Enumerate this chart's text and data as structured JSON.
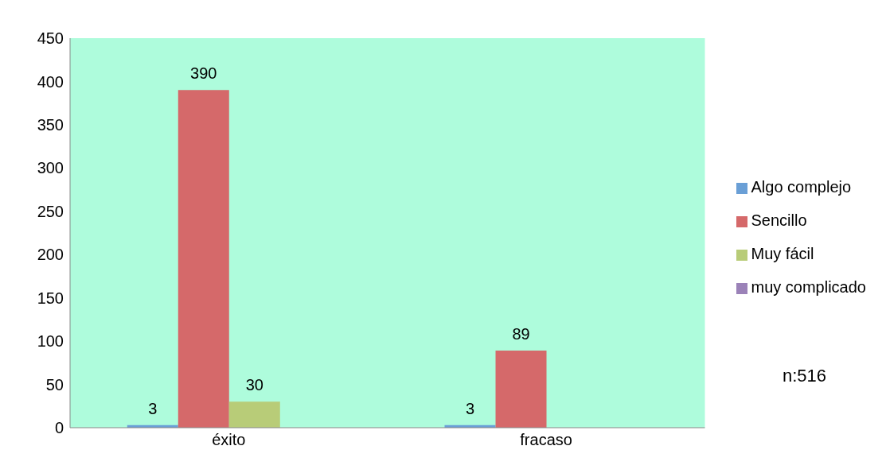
{
  "chart_data": {
    "type": "bar",
    "categories": [
      "éxito",
      "fracaso"
    ],
    "series": [
      {
        "name": "Algo complejo",
        "color": "#6a9fd6",
        "values": [
          3,
          3
        ],
        "value_labels": [
          "3",
          "3"
        ]
      },
      {
        "name": "Sencillo",
        "color": "#d5696a",
        "values": [
          390,
          89
        ],
        "value_labels": [
          "390",
          "89"
        ]
      },
      {
        "name": "Muy fácil",
        "color": "#b8cc78",
        "values": [
          30,
          null
        ],
        "value_labels": [
          "30",
          null
        ]
      },
      {
        "name": "muy complicado",
        "color": "#9b82b8",
        "values": [
          0,
          0
        ],
        "value_labels": [
          null,
          null
        ]
      }
    ],
    "ylim": [
      0,
      450
    ],
    "yticks": [
      0,
      50,
      100,
      150,
      200,
      250,
      300,
      350,
      400,
      450
    ],
    "grid": false,
    "legend": "right",
    "annotations": [
      "n:516"
    ]
  }
}
